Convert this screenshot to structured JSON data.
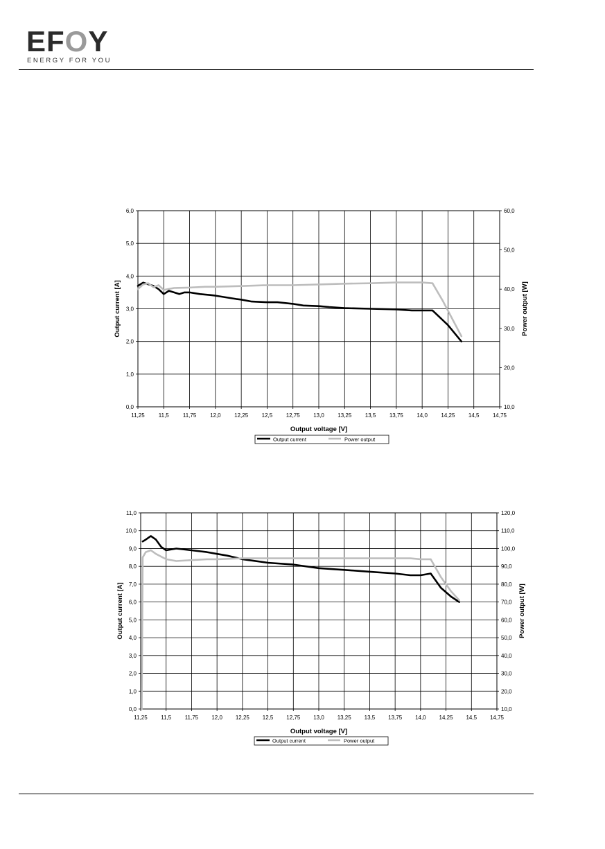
{
  "header": {
    "logo_word": "EFOY",
    "logo_tagline": "ENERGY FOR YOU"
  },
  "colors": {
    "current": "#000000",
    "power": "#bdbdbd",
    "logo_dark": "#2b2b2b",
    "logo_accent": "#9a9a9a"
  },
  "chart_data": [
    {
      "type": "line",
      "title": "",
      "xlabel": "Output voltage [V]",
      "ylabel": "Output current [A]",
      "y2label": "Power output [W]",
      "xlim": [
        11.25,
        14.75
      ],
      "ylim": [
        0,
        6
      ],
      "y2lim": [
        10,
        60
      ],
      "grid": true,
      "legend": "bottom",
      "x_ticks": [
        "11,25",
        "11,5",
        "11,75",
        "12,0",
        "12,25",
        "12,5",
        "12,75",
        "13,0",
        "13,25",
        "13,5",
        "13,75",
        "14,0",
        "14,25",
        "14,5",
        "14,75"
      ],
      "y_ticks": [
        "0,0",
        "1,0",
        "2,0",
        "3,0",
        "4,0",
        "5,0",
        "6,0"
      ],
      "y2_ticks": [
        "10,0",
        "20,0",
        "30,0",
        "40,0",
        "50,0",
        "60,0"
      ],
      "series": [
        {
          "name": "Output current",
          "axis": "left",
          "x": [
            11.25,
            11.3,
            11.35,
            11.4,
            11.45,
            11.5,
            11.55,
            11.6,
            11.65,
            11.7,
            11.75,
            11.85,
            11.95,
            12.0,
            12.1,
            12.2,
            12.25,
            12.35,
            12.5,
            12.6,
            12.75,
            12.85,
            13.0,
            13.1,
            13.25,
            13.5,
            13.75,
            13.9,
            14.0,
            14.1,
            14.25,
            14.38
          ],
          "y": [
            3.7,
            3.8,
            3.75,
            3.7,
            3.6,
            3.45,
            3.55,
            3.5,
            3.45,
            3.5,
            3.5,
            3.45,
            3.42,
            3.4,
            3.35,
            3.3,
            3.28,
            3.22,
            3.2,
            3.2,
            3.15,
            3.1,
            3.08,
            3.05,
            3.02,
            3.0,
            2.98,
            2.95,
            2.95,
            2.95,
            2.5,
            2.0
          ]
        },
        {
          "name": "Power output",
          "axis": "right",
          "x": [
            11.25,
            11.3,
            11.35,
            11.4,
            11.45,
            11.5,
            11.6,
            11.75,
            11.9,
            12.0,
            12.25,
            12.5,
            12.75,
            13.0,
            13.25,
            13.5,
            13.75,
            13.9,
            14.0,
            14.1,
            14.2,
            14.3,
            14.38
          ],
          "y": [
            40.0,
            41.2,
            41.5,
            40.5,
            41.0,
            39.8,
            40.3,
            40.4,
            40.6,
            40.6,
            40.8,
            41.0,
            41.0,
            41.2,
            41.4,
            41.5,
            41.7,
            41.7,
            41.7,
            41.5,
            37.0,
            32.0,
            28.0
          ]
        }
      ]
    },
    {
      "type": "line",
      "title": "",
      "xlabel": "Output voltage [V]",
      "ylabel": "Output current [A]",
      "y2label": "Power output [W]",
      "xlim": [
        11.25,
        14.75
      ],
      "ylim": [
        0,
        11
      ],
      "y2lim": [
        10,
        120
      ],
      "grid": true,
      "legend": "bottom",
      "x_ticks": [
        "11,25",
        "11,5",
        "11,75",
        "12,0",
        "12,25",
        "12,5",
        "12,75",
        "13,0",
        "13,25",
        "13,5",
        "13,75",
        "14,0",
        "14,25",
        "14,5",
        "14,75"
      ],
      "y_ticks": [
        "0,0",
        "1,0",
        "2,0",
        "3,0",
        "4,0",
        "5,0",
        "6,0",
        "7,0",
        "8,0",
        "9,0",
        "10,0",
        "11,0"
      ],
      "y2_ticks": [
        "10,0",
        "20,0",
        "30,0",
        "40,0",
        "50,0",
        "60,0",
        "70,0",
        "80,0",
        "90,0",
        "100,0",
        "110,0",
        "120,0"
      ],
      "series": [
        {
          "name": "Output current",
          "axis": "left",
          "x": [
            11.27,
            11.3,
            11.35,
            11.4,
            11.45,
            11.5,
            11.6,
            11.75,
            11.9,
            12.0,
            12.1,
            12.25,
            12.5,
            12.75,
            13.0,
            13.25,
            13.5,
            13.75,
            13.9,
            14.0,
            14.1,
            14.2,
            14.3,
            14.38
          ],
          "y": [
            9.4,
            9.5,
            9.7,
            9.5,
            9.1,
            8.9,
            9.0,
            8.9,
            8.8,
            8.7,
            8.6,
            8.4,
            8.2,
            8.1,
            7.9,
            7.8,
            7.7,
            7.6,
            7.5,
            7.5,
            7.6,
            6.8,
            6.3,
            6.0
          ]
        },
        {
          "name": "Power output",
          "axis": "right",
          "x": [
            11.26,
            11.27,
            11.3,
            11.35,
            11.4,
            11.5,
            11.6,
            11.75,
            11.9,
            12.0,
            12.25,
            12.5,
            12.75,
            13.0,
            13.25,
            13.5,
            13.75,
            13.9,
            14.0,
            14.1,
            14.2,
            14.3,
            14.38
          ],
          "y": [
            10.0,
            95.0,
            98.0,
            99.0,
            97.0,
            94.0,
            93.0,
            93.5,
            94.0,
            94.0,
            94.5,
            94.5,
            94.5,
            94.5,
            94.5,
            94.5,
            94.5,
            94.5,
            94.0,
            94.0,
            84.0,
            76.0,
            71.0
          ]
        }
      ]
    }
  ]
}
